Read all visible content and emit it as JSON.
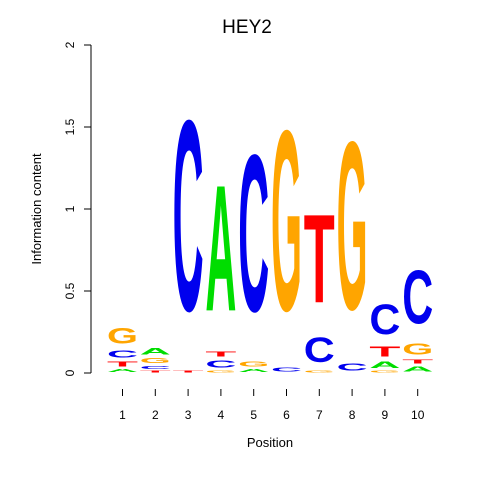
{
  "chart_data": {
    "type": "sequence-logo",
    "title": "HEY2",
    "xlabel": "Position",
    "ylabel": "Information content",
    "ylim": [
      0,
      2
    ],
    "yticks": [
      {
        "value": 0,
        "label": "0"
      },
      {
        "value": 0.5,
        "label": "0.5"
      },
      {
        "value": 1,
        "label": "1"
      },
      {
        "value": 1.5,
        "label": "1.5"
      },
      {
        "value": 2,
        "label": "2"
      }
    ],
    "positions": [
      "1",
      "2",
      "3",
      "4",
      "5",
      "6",
      "7",
      "8",
      "9",
      "10"
    ],
    "colors": {
      "A": "#00dd00",
      "C": "#0000ee",
      "G": "#ffa500",
      "T": "#ff0000"
    },
    "letters": [
      [
        {
          "letter": "A",
          "height": 0.03
        },
        {
          "letter": "T",
          "height": 0.05
        },
        {
          "letter": "C",
          "height": 0.07
        },
        {
          "letter": "G",
          "height": 0.15
        }
      ],
      [
        {
          "letter": "T",
          "height": 0.02
        },
        {
          "letter": "C",
          "height": 0.03
        },
        {
          "letter": "G",
          "height": 0.05
        },
        {
          "letter": "A",
          "height": 0.06
        }
      ],
      [
        {
          "letter": "T",
          "height": 0.02
        },
        {
          "letter": "C",
          "height": 1.86
        }
      ],
      [
        {
          "letter": "G",
          "height": 0.02
        },
        {
          "letter": "C",
          "height": 0.07
        },
        {
          "letter": "T",
          "height": 0.05
        },
        {
          "letter": "A",
          "height": 1.23
        }
      ],
      [
        {
          "letter": "A",
          "height": 0.03
        },
        {
          "letter": "G",
          "height": 0.05
        },
        {
          "letter": "C",
          "height": 1.53
        }
      ],
      [
        {
          "letter": "C",
          "height": 0.04
        },
        {
          "letter": "G",
          "height": 1.76
        }
      ],
      [
        {
          "letter": "G",
          "height": 0.02
        },
        {
          "letter": "C",
          "height": 0.24
        },
        {
          "letter": "T",
          "height": 0.86
        }
      ],
      [
        {
          "letter": "C",
          "height": 0.07
        },
        {
          "letter": "G",
          "height": 1.64
        }
      ],
      [
        {
          "letter": "G",
          "height": 0.02
        },
        {
          "letter": "A",
          "height": 0.06
        },
        {
          "letter": "T",
          "height": 0.1
        },
        {
          "letter": "C",
          "height": 0.29
        }
      ],
      [
        {
          "letter": "A",
          "height": 0.05
        },
        {
          "letter": "T",
          "height": 0.04
        },
        {
          "letter": "G",
          "height": 0.11
        },
        {
          "letter": "C",
          "height": 0.52
        }
      ]
    ]
  }
}
